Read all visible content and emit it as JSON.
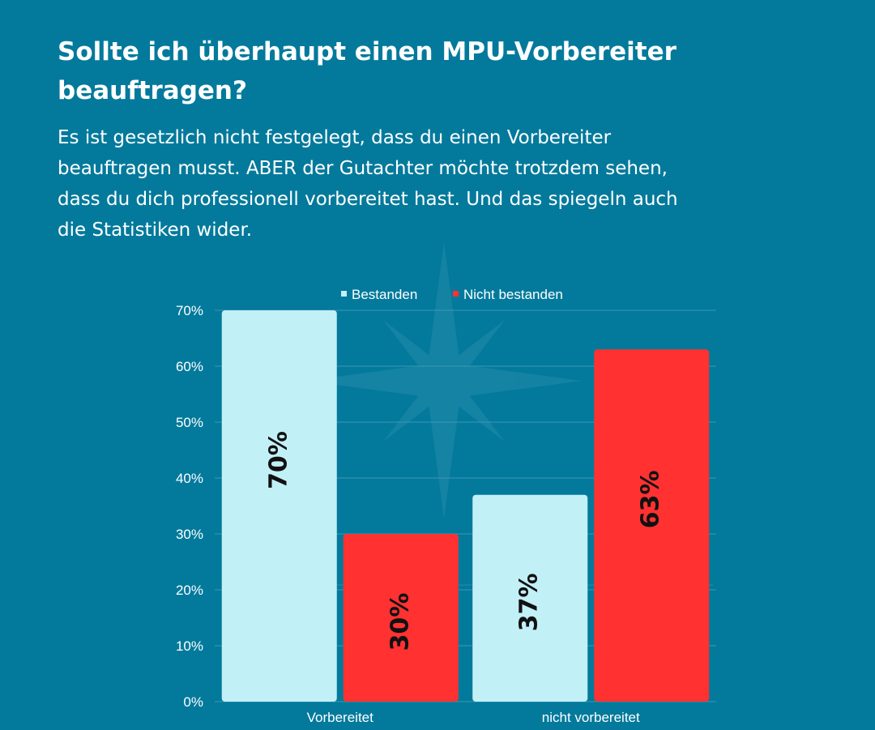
{
  "headline": "Sollte ich überhaupt einen MPU-Vorbereiter beauftragen?",
  "intro": "Es ist gesetzlich nicht festgelegt, dass du einen Vorbereiter beauftragen musst. ABER der Gutachter möchte trotzdem sehen, dass du dich professionell vorbereitet hast. Und das spiegeln auch die Statistiken wider.",
  "watermark": {
    "icon": "compass-rose-icon"
  },
  "colors": {
    "background": "#037a9c",
    "bestanden": "#c2f0f7",
    "nicht_bestanden": "#ff3131",
    "grid": "#3d97b3",
    "bar_label": "#111111"
  },
  "chart_data": {
    "type": "bar",
    "title": "",
    "xlabel": "",
    "ylabel": "",
    "categories": [
      "Vorbereitet",
      "nicht vorbereitet"
    ],
    "series": [
      {
        "name": "Bestanden",
        "values": [
          70,
          37
        ],
        "labels": [
          "70%",
          "37%"
        ],
        "color": "#c2f0f7"
      },
      {
        "name": "Nicht bestanden",
        "values": [
          30,
          63
        ],
        "labels": [
          "30%",
          "63%"
        ],
        "color": "#ff3131"
      }
    ],
    "ylim": [
      0,
      70
    ],
    "yticks": [
      0,
      10,
      20,
      30,
      40,
      50,
      60,
      70
    ],
    "ytick_labels": [
      "0%",
      "10%",
      "20%",
      "30%",
      "40%",
      "50%",
      "60%",
      "70%"
    ],
    "grid": true,
    "legend_position": "top"
  }
}
